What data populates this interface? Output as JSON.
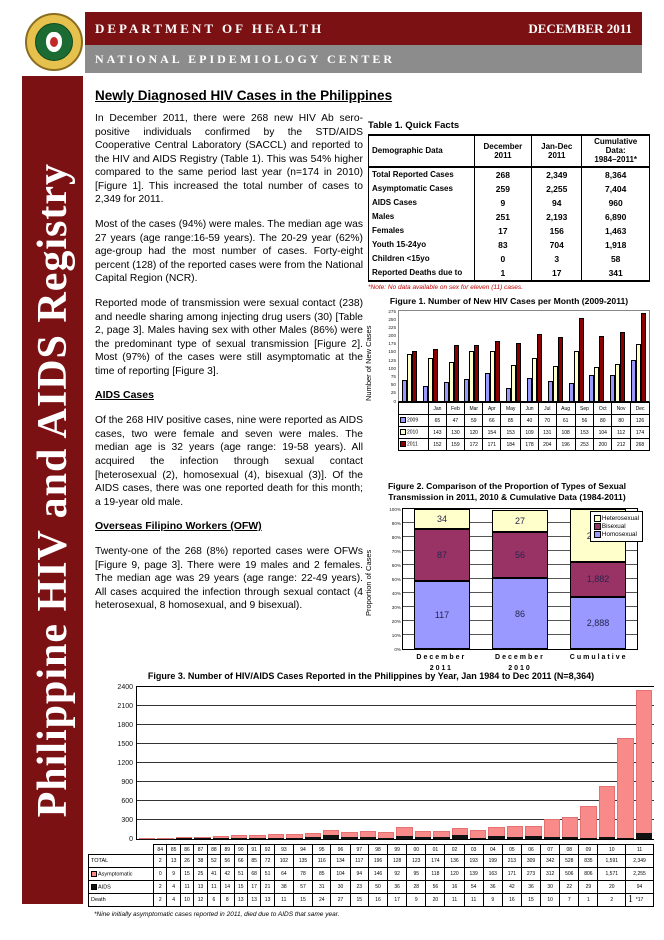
{
  "header": {
    "department": "DEPARTMENT OF HEALTH",
    "date": "DECEMBER 2011",
    "center": "NATIONAL EPIDEMIOLOGY CENTER"
  },
  "sidebar": {
    "title": "Philippine HIV and AIDS Registry"
  },
  "page": {
    "number": "1"
  },
  "article": {
    "title": "Newly Diagnosed HIV Cases in the Philippines",
    "paragraphs": [
      "In December 2011, there were 268 new HIV Ab sero-positive individuals confirmed by the STD/AIDS Cooperative Central Laboratory (SACCL) and reported to the HIV and AIDS Registry (Table 1). This was 54% higher compared to the same period last year (n=174 in 2010) [Figure 1]. This increased the total number of cases to 2,349 for 2011.",
      "Most of the cases (94%) were males. The median age was 27 years (age range:16-59 years). The 20-29 year (62%) age-group had the most number of cases. Forty-eight percent (128) of the reported cases were from the National Capital Region (NCR).",
      "Reported mode of transmission were sexual contact (238) and needle sharing among injecting drug users (30) [Table 2, page 3]. Males having sex with other Males (86%) were the predominant type of sexual transmission [Figure 2]. Most (97%) of the cases were still asymptomatic at the time of reporting [Figure 3]."
    ],
    "sections": [
      {
        "heading": "AIDS Cases",
        "paragraphs": [
          "Of the 268 HIV positive cases, nine were reported as AIDS cases, two were female and seven were males. The median age is 32 years (age range: 19-58 years). All acquired the infection through sexual contact [heterosexual (2), homosexual (4), bisexual (3)]. Of the AIDS cases, there was one reported death for this month; a 19-year old male."
        ]
      },
      {
        "heading": "Overseas Filipino Workers (OFW)",
        "paragraphs": [
          "Twenty-one of the 268 (8%) reported cases were OFWs [Figure 9, page 3]. There were 19 males and 2 females. The median age was 29 years (age range: 22-49 years). All cases acquired the infection through sexual contact (4 heterosexual, 8 homosexual, and 9 bisexual)."
        ]
      }
    ]
  },
  "quick_facts": {
    "title": "Table 1. Quick Facts",
    "columns": [
      [
        "Demographic Data"
      ],
      [
        "December",
        "2011"
      ],
      [
        "Jan-Dec",
        "2011"
      ],
      [
        "Cumulative Data:",
        "1984–2011*"
      ]
    ],
    "rows": [
      [
        "Total Reported Cases",
        "268",
        "2,349",
        "8,364"
      ],
      [
        "Asymptomatic Cases",
        "259",
        "2,255",
        "7,404"
      ],
      [
        "AIDS Cases",
        "9",
        "94",
        "960"
      ],
      [
        "Males",
        "251",
        "2,193",
        "6,890"
      ],
      [
        "Females",
        "17",
        "156",
        "1,463"
      ],
      [
        "Youth 15-24yo",
        "83",
        "704",
        "1,918"
      ],
      [
        "Children <15yo",
        "0",
        "3",
        "58"
      ],
      [
        "Reported Deaths due to",
        "1",
        "17",
        "341"
      ]
    ],
    "footnote": "*Note:  No data available on sex for eleven (11) cases."
  },
  "chart_data": [
    {
      "id": "figure1",
      "type": "bar",
      "title": "Figure 1. Number of New HIV Cases per Month (2009-2011)",
      "ylabel": "Number of New Cases",
      "ylim": [
        0,
        275
      ],
      "ytick_step": 25,
      "grid": false,
      "legend_position": "attached-data-table",
      "categories": [
        "Jan",
        "Feb",
        "Mar",
        "Apr",
        "May",
        "Jun",
        "Jul",
        "Aug",
        "Sep",
        "Oct",
        "Nov",
        "Dec"
      ],
      "series": [
        {
          "name": "2009",
          "color": "#9999FF",
          "values": [
            65,
            47,
            59,
            66,
            85,
            40,
            70,
            61,
            56,
            80,
            80,
            126
          ]
        },
        {
          "name": "2010",
          "color": "#FFFFCC",
          "values": [
            143,
            130,
            120,
            154,
            153,
            109,
            131,
            108,
            153,
            104,
            112,
            174
          ]
        },
        {
          "name": "2011",
          "color": "#8B0000",
          "values": [
            152,
            159,
            172,
            171,
            184,
            178,
            204,
            196,
            253,
            200,
            212,
            268
          ]
        }
      ]
    },
    {
      "id": "figure2",
      "type": "stacked-bar-100",
      "title_line1": "Figure 2.  Comparison of the Proportion of Types of Sexual",
      "title_line2": "Transmission in 2011, 2010 & Cumulative Data (1984-2011)",
      "ylabel": "Proportion of Cases",
      "ytick_step_pct": 10,
      "grid": true,
      "legend_position": "top-right",
      "categories": [
        [
          "December",
          "2011"
        ],
        [
          "December",
          "2010"
        ],
        [
          "Cumulative"
        ]
      ],
      "legend": [
        {
          "label": "Heterosexual",
          "color": "#FFFFCC"
        },
        {
          "label": "Bisexual",
          "color": "#993366"
        },
        {
          "label": "Homosexual",
          "color": "#9999FF"
        }
      ],
      "series": [
        {
          "name": "Homosexual",
          "color": "#9999FF",
          "values": [
            117,
            86,
            2888
          ],
          "labels": [
            "117",
            "86",
            "2,888"
          ]
        },
        {
          "name": "Bisexual",
          "color": "#993366",
          "values": [
            87,
            56,
            1882
          ],
          "labels": [
            "87",
            "56",
            "1,882"
          ]
        },
        {
          "name": "Heterosexual",
          "color": "#FFFFCC",
          "values": [
            34,
            27,
            2876
          ],
          "labels": [
            "34",
            "27",
            "2,876"
          ]
        }
      ]
    },
    {
      "id": "figure3",
      "type": "stacked-bar",
      "title": "Figure 3. Number of HIV/AIDS Cases Reported in the Philippines by Year, Jan 1984 to Dec 2011 (N=8,364)",
      "ylim": [
        0,
        2400
      ],
      "ytick_step": 300,
      "grid": true,
      "bar_color": "#F98A8A",
      "aids_color": "#111111",
      "categories": [
        "84",
        "85",
        "86",
        "87",
        "88",
        "89",
        "90",
        "91",
        "92",
        "93",
        "94",
        "95",
        "96",
        "97",
        "98",
        "99",
        "00",
        "01",
        "02",
        "03",
        "04",
        "05",
        "06",
        "07",
        "08",
        "09",
        "10",
        "11"
      ],
      "table_rows": [
        {
          "label": "TOTAL",
          "marker": "",
          "values": [
            "2",
            "13",
            "26",
            "38",
            "52",
            "56",
            "66",
            "85",
            "72",
            "102",
            "135",
            "116",
            "134",
            "117",
            "196",
            "128",
            "123",
            "174",
            "136",
            "193",
            "199",
            "213",
            "309",
            "342",
            "528",
            "835",
            "1,591",
            "2,349"
          ]
        },
        {
          "label": "Asymptomatic",
          "marker": "#F98A8A",
          "values": [
            "0",
            "9",
            "15",
            "25",
            "41",
            "42",
            "51",
            "68",
            "51",
            "64",
            "78",
            "85",
            "104",
            "94",
            "146",
            "92",
            "95",
            "118",
            "120",
            "139",
            "163",
            "171",
            "273",
            "312",
            "506",
            "806",
            "1,571",
            "2,255"
          ]
        },
        {
          "label": "AIDS",
          "marker": "#111111",
          "values": [
            "2",
            "4",
            "11",
            "13",
            "11",
            "14",
            "15",
            "17",
            "21",
            "38",
            "57",
            "31",
            "30",
            "23",
            "50",
            "36",
            "28",
            "56",
            "16",
            "54",
            "36",
            "42",
            "36",
            "30",
            "22",
            "29",
            "20",
            "94"
          ]
        },
        {
          "label": "Death",
          "marker": "",
          "values": [
            "2",
            "4",
            "10",
            "12",
            "6",
            "8",
            "13",
            "13",
            "13",
            "11",
            "15",
            "24",
            "27",
            "15",
            "16",
            "17",
            "9",
            "20",
            "11",
            "11",
            "9",
            "16",
            "15",
            "10",
            "7",
            "1",
            "2",
            "*17"
          ]
        }
      ],
      "footnote": "*Nine initially asymptomatic cases reported in 2011, died due to AIDS that same year."
    }
  ]
}
